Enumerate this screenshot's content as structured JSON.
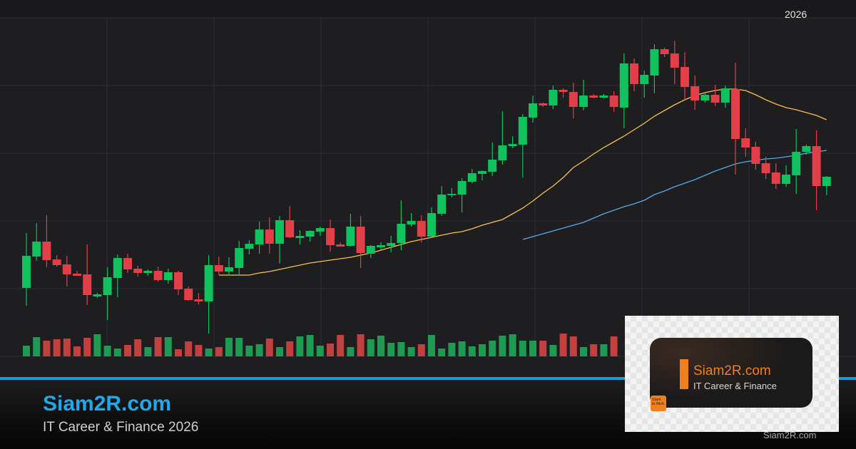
{
  "header": {
    "year_label": "2026"
  },
  "footer": {
    "brand": "Siam2R.com",
    "tagline": "IT Career & Finance 2026",
    "watermark": "Siam2R.com"
  },
  "logo": {
    "name": "Siam2R.com",
    "subtitle": "IT Career & Finance",
    "badge": "Siam to Rich"
  },
  "colors": {
    "up": "#10c25e",
    "down": "#e23f48",
    "vol_up": "#1e9a52",
    "vol_down": "#c2403e",
    "ma_short": "#f5c150",
    "ma_long": "#5aa9e6",
    "accent": "#1e9ad6",
    "brand_text": "#1fa8ec",
    "logo_orange": "#f07f1e",
    "background": "#1e1e20",
    "grid": "#2c2f3a"
  },
  "chart_data": {
    "type": "candlestick",
    "title": "",
    "xlabel": "",
    "ylabel": "",
    "x_tick_labels": [
      "2026"
    ],
    "grid": true,
    "ylim": [
      100,
      600
    ],
    "ohlc": [
      [
        196,
        273,
        171,
        241
      ],
      [
        240,
        287,
        234,
        261
      ],
      [
        261,
        298,
        225,
        235
      ],
      [
        236,
        242,
        226,
        228
      ],
      [
        229,
        241,
        198,
        215
      ],
      [
        216,
        220,
        213,
        213
      ],
      [
        215,
        257,
        172,
        186
      ],
      [
        184,
        189,
        182,
        187
      ],
      [
        186,
        225,
        151,
        211
      ],
      [
        210,
        243,
        183,
        238
      ],
      [
        238,
        244,
        217,
        222
      ],
      [
        223,
        227,
        212,
        217
      ],
      [
        217,
        222,
        213,
        220
      ],
      [
        220,
        226,
        205,
        207
      ],
      [
        207,
        223,
        202,
        218
      ],
      [
        218,
        220,
        186,
        194
      ],
      [
        195,
        198,
        178,
        179
      ],
      [
        180,
        189,
        173,
        177
      ],
      [
        177,
        242,
        132,
        228
      ],
      [
        228,
        240,
        215,
        219
      ],
      [
        219,
        239,
        215,
        225
      ],
      [
        224,
        262,
        213,
        252
      ],
      [
        251,
        263,
        243,
        258
      ],
      [
        257,
        289,
        244,
        278
      ],
      [
        278,
        295,
        244,
        258
      ],
      [
        258,
        297,
        230,
        291
      ],
      [
        291,
        311,
        266,
        267
      ],
      [
        266,
        277,
        257,
        269
      ],
      [
        268,
        277,
        261,
        276
      ],
      [
        275,
        282,
        269,
        280
      ],
      [
        280,
        292,
        247,
        256
      ],
      [
        257,
        260,
        254,
        254
      ],
      [
        255,
        300,
        254,
        282
      ],
      [
        282,
        297,
        224,
        245
      ],
      [
        244,
        256,
        238,
        255
      ],
      [
        253,
        260,
        250,
        256
      ],
      [
        255,
        269,
        246,
        259
      ],
      [
        259,
        319,
        249,
        286
      ],
      [
        285,
        301,
        282,
        290
      ],
      [
        290,
        298,
        260,
        268
      ],
      [
        268,
        309,
        268,
        301
      ],
      [
        300,
        339,
        297,
        327
      ],
      [
        326,
        336,
        323,
        328
      ],
      [
        327,
        350,
        302,
        346
      ],
      [
        345,
        363,
        343,
        357
      ],
      [
        356,
        361,
        347,
        360
      ],
      [
        359,
        400,
        353,
        376
      ],
      [
        375,
        444,
        369,
        396
      ],
      [
        395,
        409,
        392,
        398
      ],
      [
        397,
        440,
        351,
        436
      ],
      [
        435,
        466,
        428,
        455
      ],
      [
        455,
        456,
        450,
        452
      ],
      [
        452,
        480,
        447,
        474
      ],
      [
        474,
        476,
        463,
        471
      ],
      [
        471,
        484,
        434,
        450
      ],
      [
        450,
        488,
        445,
        466
      ],
      [
        466,
        468,
        462,
        463
      ],
      [
        463,
        468,
        462,
        466
      ],
      [
        466,
        472,
        443,
        450
      ],
      [
        449,
        525,
        420,
        511
      ],
      [
        511,
        518,
        472,
        482
      ],
      [
        482,
        501,
        463,
        495
      ],
      [
        494,
        538,
        469,
        531
      ],
      [
        531,
        533,
        520,
        524
      ],
      [
        525,
        543,
        482,
        505
      ],
      [
        506,
        527,
        460,
        478
      ],
      [
        479,
        494,
        446,
        459
      ],
      [
        459,
        469,
        456,
        467
      ],
      [
        467,
        481,
        451,
        456
      ],
      [
        456,
        480,
        449,
        476
      ],
      [
        475,
        512,
        355,
        405
      ],
      [
        406,
        420,
        380,
        393
      ],
      [
        394,
        401,
        362,
        370
      ],
      [
        371,
        380,
        349,
        357
      ],
      [
        358,
        371,
        335,
        342
      ],
      [
        342,
        368,
        338,
        355
      ],
      [
        354,
        419,
        328,
        387
      ],
      [
        387,
        397,
        383,
        395
      ],
      [
        395,
        417,
        305,
        339
      ],
      [
        339,
        353,
        326,
        352
      ]
    ],
    "volume": [
      15,
      27,
      22,
      24,
      25,
      14,
      26,
      31,
      15,
      11,
      16,
      24,
      13,
      27,
      27,
      10,
      21,
      16,
      11,
      13,
      26,
      26,
      15,
      17,
      25,
      13,
      21,
      28,
      30,
      15,
      18,
      30,
      13,
      31,
      24,
      29,
      19,
      20,
      13,
      17,
      30,
      11,
      19,
      21,
      14,
      17,
      22,
      29,
      31,
      22,
      22,
      22,
      16,
      32,
      28,
      13,
      17,
      17,
      28,
      null,
      null,
      null,
      null,
      null,
      null,
      null,
      null,
      null,
      null,
      null,
      null,
      null,
      null,
      null,
      null,
      null,
      null,
      null,
      null,
      22
    ],
    "moving_averages": [
      {
        "start_index": 19,
        "color": "#f5c150",
        "values": [
          214,
          214,
          214,
          214,
          217,
          219,
          222,
          225,
          228,
          231,
          233,
          235,
          237,
          239,
          242,
          245,
          249,
          253,
          257,
          261,
          264,
          267,
          270,
          273,
          275,
          279,
          284,
          288,
          292,
          300,
          308,
          318,
          329,
          339,
          351,
          365,
          374,
          384,
          393,
          401,
          409,
          418,
          427,
          437,
          445,
          453,
          460,
          466,
          470,
          473,
          475,
          475,
          473,
          467,
          460,
          454,
          449,
          446,
          442,
          438,
          432
        ]
      },
      {
        "start_index": 49,
        "color": "#5aa9e6",
        "values": [
          264,
          268,
          272,
          276,
          280,
          284,
          288,
          294,
          300,
          305,
          310,
          314,
          319,
          327,
          332,
          338,
          343,
          348,
          354,
          360,
          365,
          370,
          373,
          375,
          377,
          378,
          380,
          382,
          385,
          387,
          389
        ]
      }
    ]
  }
}
